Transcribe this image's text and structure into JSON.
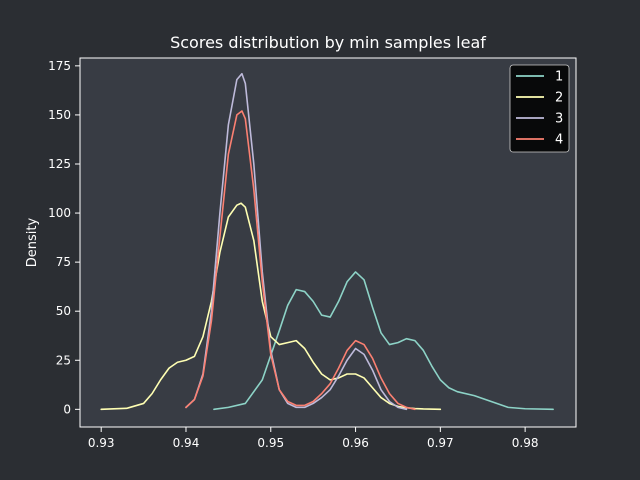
{
  "colors": {
    "figure_bg": "#2b2e33",
    "axes_bg": "#383c44",
    "axes_edge": "#ffffff",
    "legend_bg": "#000000",
    "text": "#ffffff"
  },
  "chart_data": {
    "type": "line",
    "title": "Scores distribution by min samples leaf",
    "xlabel": "",
    "ylabel": "Density",
    "xlim": [
      0.9275,
      0.986
    ],
    "ylim": [
      -9,
      179
    ],
    "xticks": [
      0.93,
      0.94,
      0.95,
      0.96,
      0.97,
      0.98
    ],
    "yticks": [
      0,
      25,
      50,
      75,
      100,
      125,
      150,
      175
    ],
    "grid": false,
    "legend_position": "top-right",
    "series": [
      {
        "name": "1",
        "color": "#8dd3c7",
        "x": [
          0.9433,
          0.945,
          0.947,
          0.949,
          0.951,
          0.952,
          0.953,
          0.954,
          0.955,
          0.956,
          0.957,
          0.958,
          0.959,
          0.96,
          0.961,
          0.962,
          0.963,
          0.964,
          0.965,
          0.966,
          0.967,
          0.968,
          0.969,
          0.97,
          0.971,
          0.972,
          0.974,
          0.976,
          0.978,
          0.98,
          0.9833
        ],
        "y": [
          0,
          1,
          3,
          15,
          40,
          53,
          61,
          60,
          55,
          48,
          47,
          55,
          65,
          70,
          66,
          52,
          39,
          33,
          34,
          36,
          35,
          30,
          22,
          15,
          11,
          9,
          7,
          4,
          1,
          0.3,
          0
        ]
      },
      {
        "name": "2",
        "color": "#ffffb3",
        "x": [
          0.93,
          0.933,
          0.935,
          0.936,
          0.937,
          0.938,
          0.939,
          0.94,
          0.941,
          0.942,
          0.943,
          0.944,
          0.945,
          0.946,
          0.9465,
          0.947,
          0.948,
          0.949,
          0.95,
          0.951,
          0.952,
          0.953,
          0.954,
          0.955,
          0.956,
          0.957,
          0.958,
          0.959,
          0.96,
          0.961,
          0.962,
          0.963,
          0.964,
          0.965,
          0.966,
          0.967,
          0.968,
          0.97
        ],
        "y": [
          0,
          0.5,
          3,
          8,
          15,
          21,
          24,
          25,
          27,
          37,
          55,
          80,
          98,
          104,
          105,
          103,
          86,
          55,
          37,
          33,
          34,
          35,
          31,
          24,
          18,
          15,
          16,
          18,
          18,
          16,
          11,
          6,
          3,
          1.5,
          0.8,
          0.4,
          0.2,
          0
        ]
      },
      {
        "name": "3",
        "color": "#bebada",
        "x": [
          0.94,
          0.941,
          0.942,
          0.943,
          0.944,
          0.945,
          0.946,
          0.9466,
          0.947,
          0.948,
          0.949,
          0.95,
          0.951,
          0.952,
          0.953,
          0.954,
          0.955,
          0.956,
          0.957,
          0.958,
          0.959,
          0.96,
          0.961,
          0.962,
          0.963,
          0.964,
          0.965,
          0.966
        ],
        "y": [
          1,
          5,
          18,
          50,
          100,
          145,
          168,
          171,
          166,
          125,
          70,
          30,
          10,
          3,
          1,
          1,
          3,
          6,
          10,
          17,
          25,
          31,
          28,
          20,
          10,
          4,
          1,
          0
        ]
      },
      {
        "name": "4",
        "color": "#fb8072",
        "x": [
          0.94,
          0.941,
          0.942,
          0.943,
          0.944,
          0.945,
          0.946,
          0.9466,
          0.947,
          0.948,
          0.949,
          0.95,
          0.951,
          0.952,
          0.953,
          0.954,
          0.955,
          0.956,
          0.957,
          0.958,
          0.959,
          0.96,
          0.961,
          0.962,
          0.963,
          0.964,
          0.965,
          0.966,
          0.967
        ],
        "y": [
          1,
          5,
          17,
          45,
          88,
          130,
          150,
          152,
          148,
          112,
          65,
          28,
          10,
          4,
          2,
          2,
          4,
          8,
          13,
          21,
          30,
          35,
          33,
          26,
          16,
          8,
          3,
          1,
          0
        ]
      }
    ]
  }
}
